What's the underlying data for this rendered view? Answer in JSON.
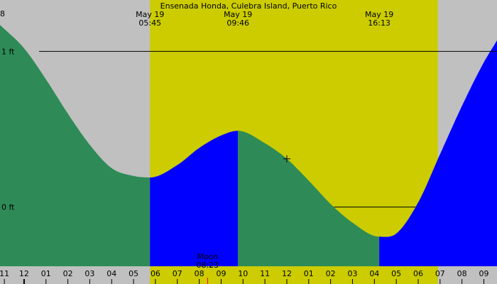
{
  "chart_data": {
    "type": "area",
    "title": "Ensenada Honda, Culebra Island, Puerto Rico",
    "corner_label": "8",
    "y_unit": "ft",
    "ylim": [
      -0.38,
      1.33
    ],
    "reference_lines": [
      {
        "label": "1 ft",
        "y": 1.0
      },
      {
        "label": "0 ft",
        "y": 0.0
      }
    ],
    "xlim_hours": [
      -13.1,
      9.6
    ],
    "x_ticks": [
      {
        "label": "11",
        "h": -12.9
      },
      {
        "label": "12",
        "h": -12.0
      },
      {
        "label": "01",
        "h": -11.0
      },
      {
        "label": "02",
        "h": -10.0
      },
      {
        "label": "03",
        "h": -9.0
      },
      {
        "label": "04",
        "h": -8.0
      },
      {
        "label": "05",
        "h": -7.0
      },
      {
        "label": "06",
        "h": -6.0
      },
      {
        "label": "07",
        "h": -5.0
      },
      {
        "label": "08",
        "h": -4.0
      },
      {
        "label": "09",
        "h": -3.0
      },
      {
        "label": "10",
        "h": -2.0
      },
      {
        "label": "11",
        "h": -1.0
      },
      {
        "label": "12",
        "h": 0.0
      },
      {
        "label": "01",
        "h": 1.0
      },
      {
        "label": "02",
        "h": 2.0
      },
      {
        "label": "03",
        "h": 3.0
      },
      {
        "label": "04",
        "h": 4.0
      },
      {
        "label": "05",
        "h": 5.0
      },
      {
        "label": "06",
        "h": 6.0
      },
      {
        "label": "07",
        "h": 7.0
      },
      {
        "label": "08",
        "h": 8.0
      },
      {
        "label": "09",
        "h": 9.0
      }
    ],
    "daylight_hours": [
      -6.25,
      6.9
    ],
    "events": [
      {
        "date": "May 19",
        "time": "05:45",
        "h": -6.25
      },
      {
        "date": "May 19",
        "time": "09:46",
        "h": -2.23
      },
      {
        "date": "May 19",
        "time": "16:13",
        "h": 4.22
      }
    ],
    "moonset": {
      "label": "Moon",
      "time": "08:23",
      "h": -3.62
    },
    "now_h": 0.0,
    "tide": {
      "x": [
        -13.1,
        -12.0,
        -11.0,
        -10.0,
        -9.0,
        -8.0,
        -7.0,
        -6.25,
        -5.0,
        -4.0,
        -3.0,
        -2.23,
        -1.0,
        0.0,
        1.0,
        2.0,
        3.0,
        4.22,
        5.0,
        6.0,
        7.0,
        8.0,
        9.0,
        9.6
      ],
      "y": [
        1.17,
        1.02,
        0.82,
        0.6,
        0.4,
        0.25,
        0.2,
        0.19,
        0.27,
        0.38,
        0.46,
        0.49,
        0.41,
        0.31,
        0.17,
        0.02,
        -0.1,
        -0.19,
        -0.17,
        0.03,
        0.34,
        0.65,
        0.93,
        1.07
      ]
    },
    "segments": [
      {
        "from_h": -13.1,
        "to_h": -6.25,
        "color": "#2e8b57"
      },
      {
        "from_h": -6.25,
        "to_h": -2.23,
        "color": "#0000ff"
      },
      {
        "from_h": -2.23,
        "to_h": 4.22,
        "color": "#2e8b57"
      },
      {
        "from_h": 4.22,
        "to_h": 9.6,
        "color": "#0000ff"
      }
    ],
    "colors": {
      "background": "#c0c0c0",
      "daylight": "#cccc00"
    }
  }
}
